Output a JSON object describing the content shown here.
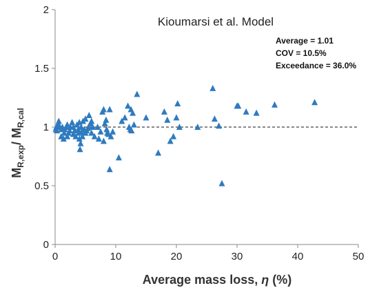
{
  "chart_data": {
    "type": "scatter",
    "title": "Kioumarsi et al. Model",
    "xlabel_prefix": "Average mass loss, ",
    "xlabel_symbol": "η",
    "xlabel_suffix": " (%)",
    "ylabel_main_1": "M",
    "ylabel_sub_1": "R,exp",
    "ylabel_slash": "/ ",
    "ylabel_main_2": "M",
    "ylabel_sub_2": "R,cal",
    "stats": [
      "Average = 1.01",
      "COV = 10.5%",
      "Exceedance = 36.0%"
    ],
    "xlim": [
      0,
      50
    ],
    "ylim": [
      0,
      2
    ],
    "xticks": [
      0,
      10,
      20,
      30,
      40,
      50
    ],
    "yticks": [
      0,
      0.5,
      1,
      1.5,
      2
    ],
    "ytick_labels": [
      "0",
      "0.5",
      "1",
      "1.5",
      "2"
    ],
    "reference_line_y": 1,
    "grid": false,
    "marker_color": "#2E7BBF",
    "x": [
      0.1,
      0.2,
      0.3,
      0.5,
      0.6,
      0.8,
      1.0,
      1.0,
      1.2,
      1.4,
      1.5,
      1.6,
      1.8,
      2.0,
      2.0,
      2.2,
      2.4,
      2.5,
      2.8,
      3.0,
      3.0,
      3.2,
      3.4,
      3.6,
      3.8,
      3.9,
      4.0,
      4.0,
      4.1,
      4.2,
      4.3,
      4.4,
      4.5,
      4.6,
      4.8,
      5.0,
      5.0,
      5.2,
      5.4,
      5.5,
      5.6,
      5.8,
      6.0,
      6.0,
      6.2,
      6.5,
      7.0,
      7.2,
      7.5,
      7.8,
      8.0,
      8.0,
      8.2,
      8.4,
      8.5,
      8.6,
      8.8,
      9.0,
      9.0,
      9.2,
      9.5,
      10.5,
      11.0,
      11.5,
      12.0,
      12.2,
      12.4,
      12.5,
      12.6,
      12.8,
      13.0,
      13.5,
      15.0,
      17.0,
      18.0,
      18.5,
      19.0,
      19.5,
      20.0,
      20.2,
      20.5,
      23.5,
      26.0,
      26.3,
      27.0,
      27.5,
      30.0,
      30.2,
      31.5,
      33.2,
      36.2,
      42.8
    ],
    "y": [
      0.98,
      1.0,
      0.97,
      1.02,
      1.05,
      1.0,
      0.98,
      0.92,
      1.0,
      0.9,
      0.95,
      0.98,
      1.0,
      0.92,
      1.02,
      0.95,
      0.97,
      1.0,
      1.04,
      1.0,
      0.94,
      0.97,
      0.92,
      1.02,
      0.98,
      0.95,
      1.04,
      0.9,
      0.81,
      0.86,
      1.0,
      0.96,
      0.92,
      1.05,
      0.98,
      1.07,
      0.95,
      0.97,
      0.99,
      1.0,
      1.1,
      1.03,
      1.05,
      0.95,
      1.0,
      0.92,
      1.0,
      0.9,
      0.96,
      1.13,
      1.15,
      0.88,
      1.03,
      1.06,
      0.98,
      0.95,
      0.94,
      1.15,
      0.64,
      0.92,
      0.96,
      0.74,
      1.05,
      1.08,
      1.18,
      1.0,
      0.98,
      1.15,
      0.97,
      1.12,
      1.02,
      1.28,
      1.08,
      0.78,
      1.13,
      1.06,
      0.88,
      0.92,
      1.08,
      1.2,
      1.0,
      1.0,
      1.33,
      1.07,
      1.01,
      0.52,
      1.18,
      1.18,
      1.13,
      1.12,
      1.19,
      1.21
    ]
  }
}
